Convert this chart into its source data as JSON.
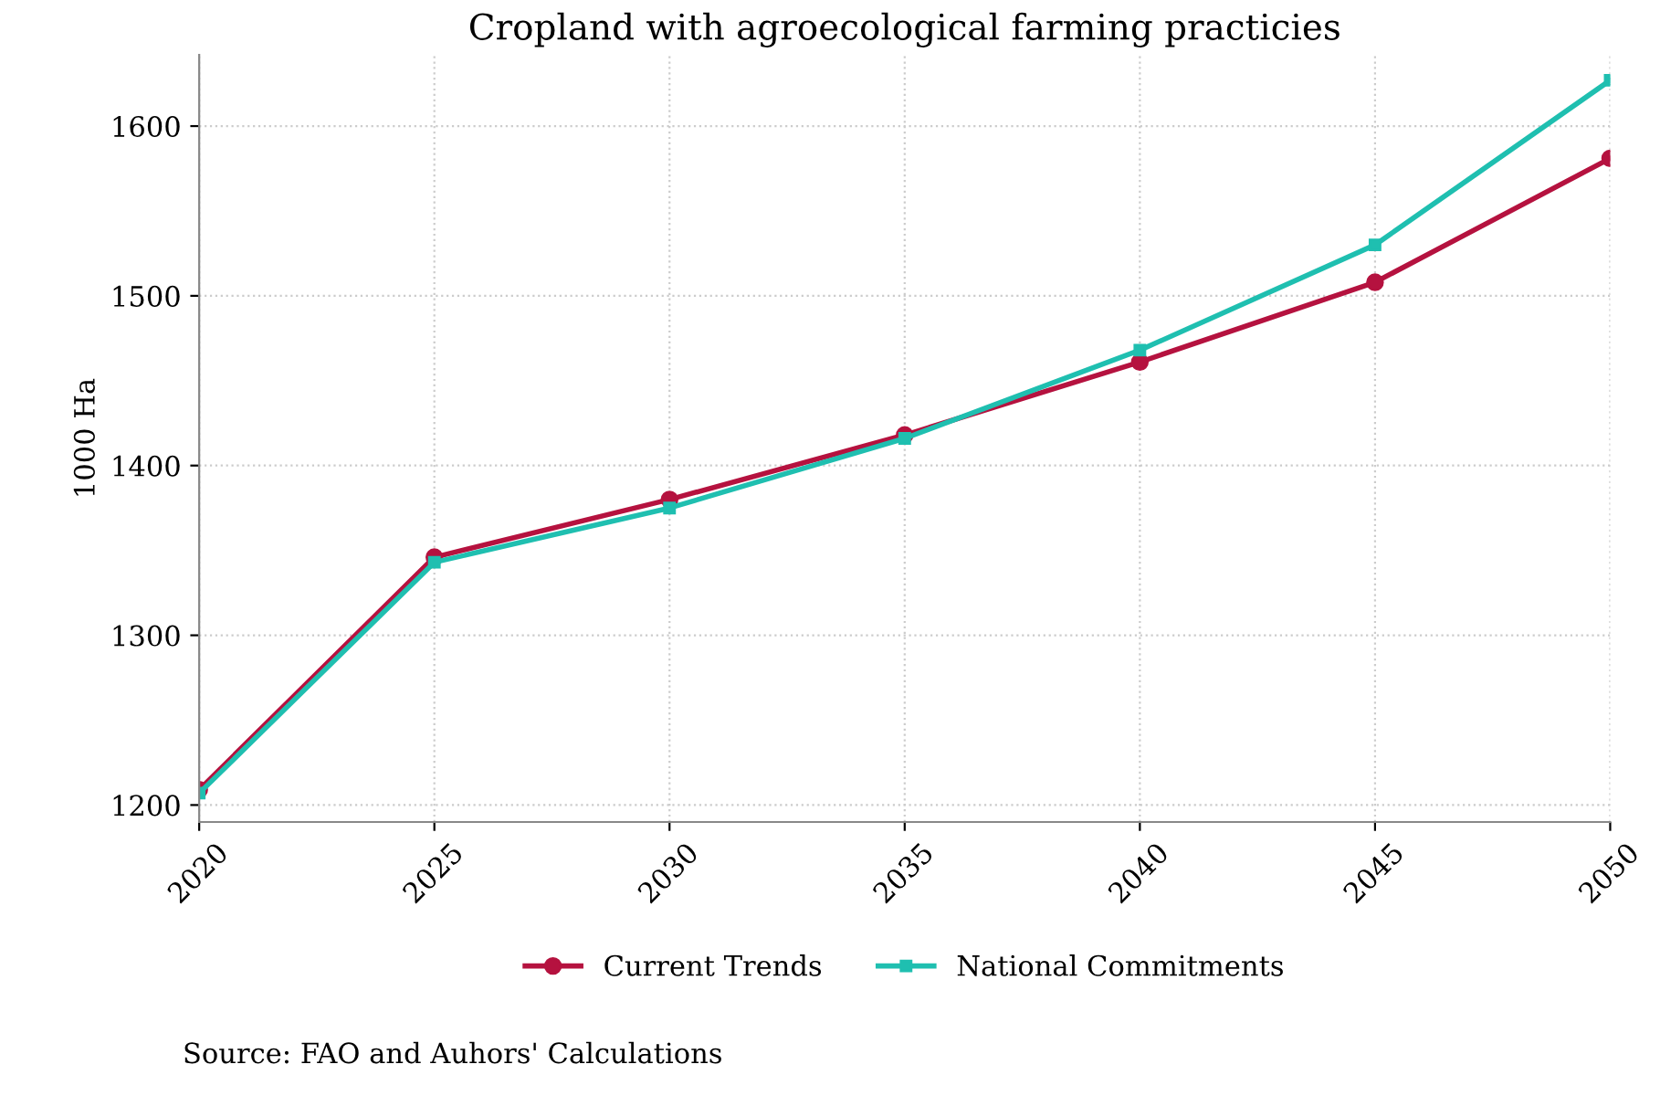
{
  "chart_data": {
    "type": "line",
    "title": "Cropland with agroecological farming practicies",
    "ylabel": "1000 Ha",
    "x": [
      2020,
      2025,
      2030,
      2035,
      2040,
      2045,
      2050
    ],
    "series": [
      {
        "name": "Current Trends",
        "color": "#b5123f",
        "marker": "circle",
        "values": [
          1209,
          1346,
          1380,
          1418,
          1461,
          1508,
          1581
        ]
      },
      {
        "name": "National Commitments",
        "color": "#1fbfb0",
        "marker": "square",
        "values": [
          1207,
          1343,
          1375,
          1416,
          1468,
          1530,
          1627
        ]
      }
    ],
    "xlim": [
      2020,
      2050
    ],
    "xticks": [
      2020,
      2025,
      2030,
      2035,
      2040,
      2045,
      2050
    ],
    "ylim": [
      1190,
      1642
    ],
    "yticks": [
      1200,
      1300,
      1400,
      1500,
      1600
    ],
    "grid": true,
    "legend": "bottom",
    "line_style": "solid",
    "annotations": [
      "Source: FAO and Auhors' Calculations"
    ]
  }
}
